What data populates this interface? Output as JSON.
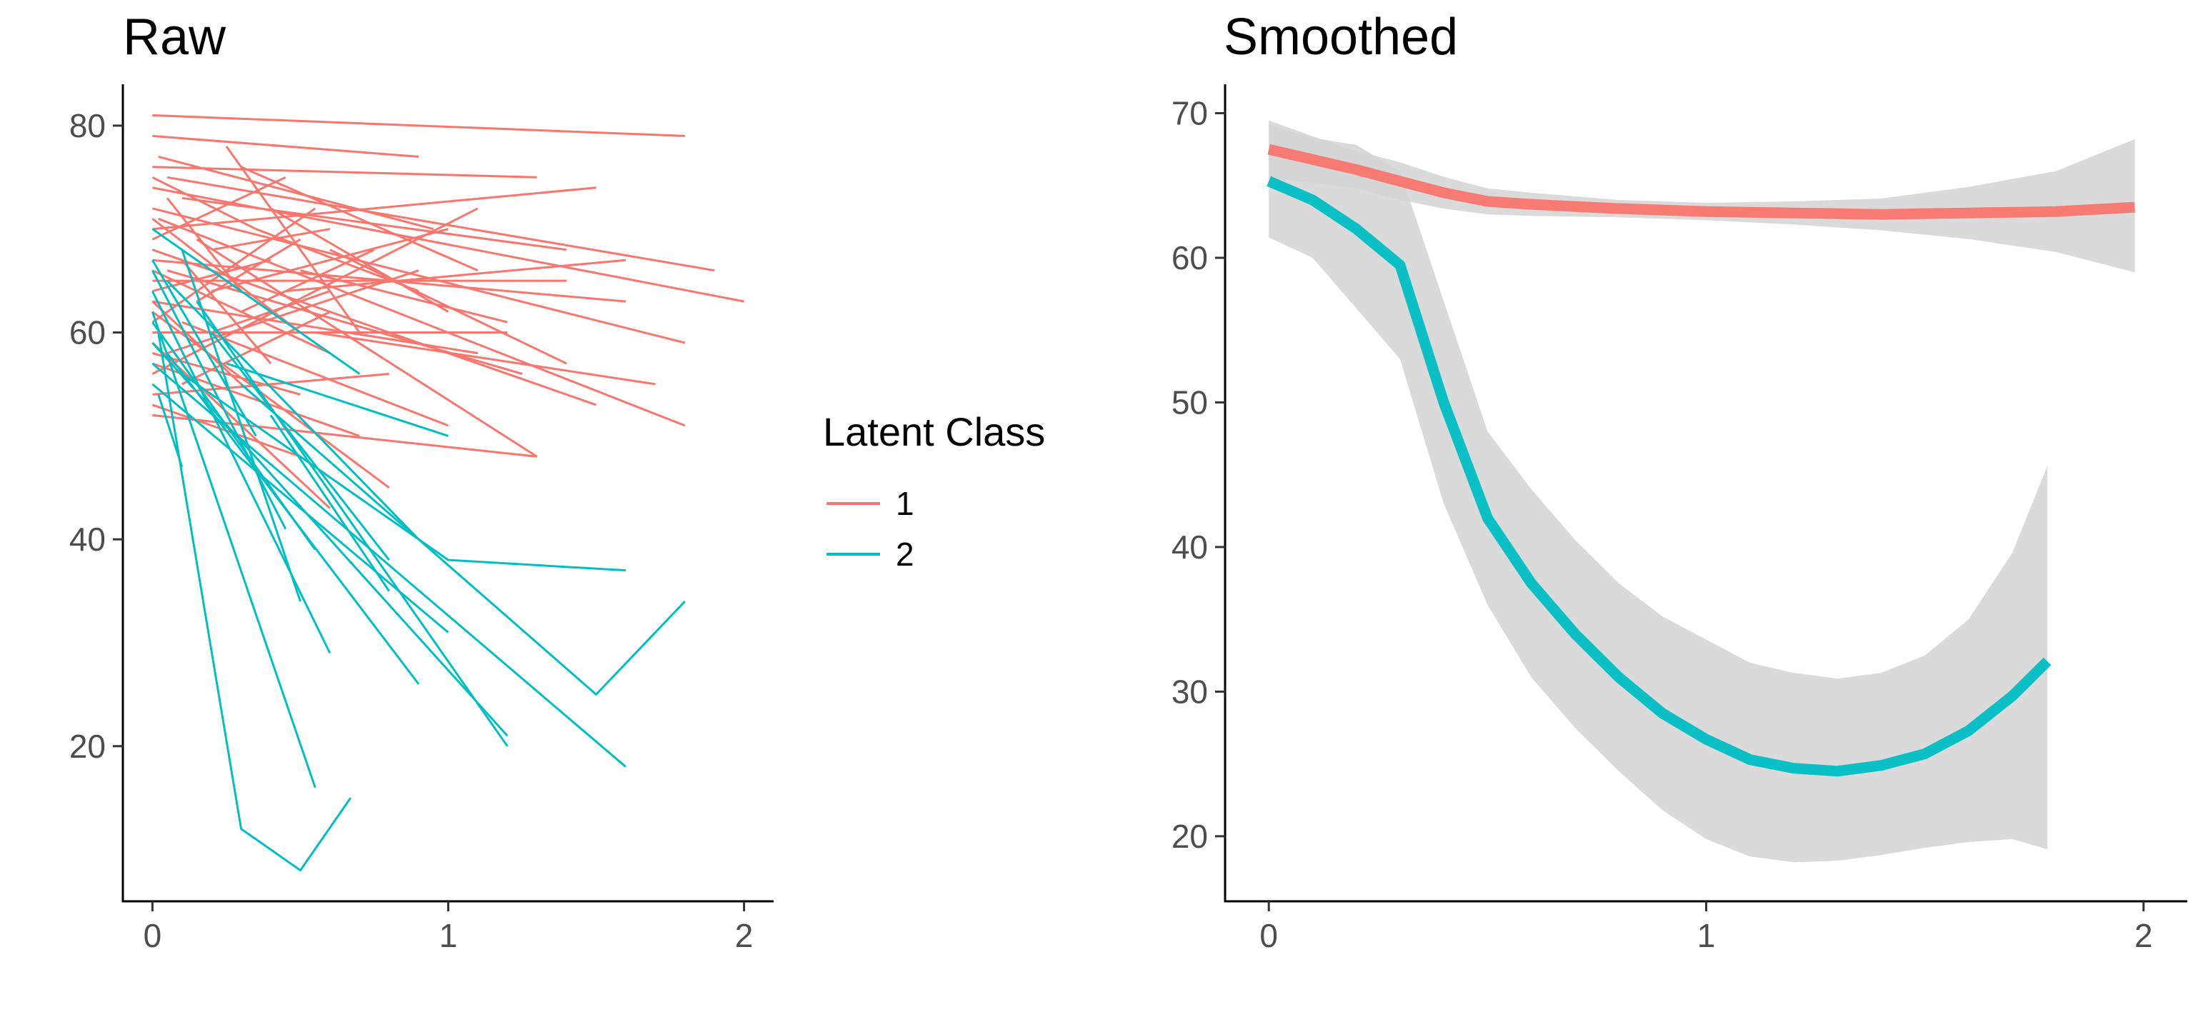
{
  "legend": {
    "title": "Latent Class",
    "placement": "between-panels",
    "items": [
      {
        "label": "1",
        "color": "#F8766D"
      },
      {
        "label": "2",
        "color": "#00BFC4"
      }
    ]
  },
  "chart_data": [
    {
      "id": "raw",
      "type": "line",
      "title": "Raw",
      "xlabel": "",
      "ylabel": "",
      "xlim": [
        -0.1,
        2.1
      ],
      "ylim": [
        5,
        84
      ],
      "x_ticks": [
        0,
        1,
        2
      ],
      "y_ticks": [
        20,
        40,
        60,
        80
      ],
      "grid": false,
      "series": [
        {
          "class": "1",
          "color": "#F8766D",
          "lines": [
            [
              [
                0,
                81
              ],
              [
                1.8,
                79
              ]
            ],
            [
              [
                0,
                79
              ],
              [
                0.9,
                77
              ]
            ],
            [
              [
                0.02,
                77
              ],
              [
                0.95,
                70
              ]
            ],
            [
              [
                0,
                76
              ],
              [
                1.3,
                75
              ]
            ],
            [
              [
                0.05,
                75
              ],
              [
                1.9,
                66
              ]
            ],
            [
              [
                0,
                74
              ],
              [
                2.0,
                63
              ]
            ],
            [
              [
                0.1,
                73
              ],
              [
                1.4,
                68
              ]
            ],
            [
              [
                0,
                72
              ],
              [
                1.8,
                59
              ]
            ],
            [
              [
                0.02,
                71
              ],
              [
                1.8,
                51
              ]
            ],
            [
              [
                0,
                70
              ],
              [
                1.5,
                74
              ]
            ],
            [
              [
                0.15,
                69
              ],
              [
                1.3,
                48
              ]
            ],
            [
              [
                0,
                68
              ],
              [
                1.5,
                53
              ]
            ],
            [
              [
                0,
                67
              ],
              [
                1.6,
                63
              ]
            ],
            [
              [
                0.05,
                66
              ],
              [
                1.25,
                56
              ]
            ],
            [
              [
                0,
                65
              ],
              [
                1.4,
                65
              ]
            ],
            [
              [
                0.2,
                64
              ],
              [
                1.0,
                70
              ]
            ],
            [
              [
                0,
                63
              ],
              [
                1.1,
                58
              ]
            ],
            [
              [
                0,
                62
              ],
              [
                0.8,
                45
              ]
            ],
            [
              [
                0.1,
                61
              ],
              [
                1.0,
                51
              ]
            ],
            [
              [
                0,
                60
              ],
              [
                1.2,
                60
              ]
            ],
            [
              [
                0,
                59
              ],
              [
                0.6,
                43
              ]
            ],
            [
              [
                0.05,
                58
              ],
              [
                0.9,
                66
              ]
            ],
            [
              [
                0,
                57
              ],
              [
                0.7,
                50
              ]
            ],
            [
              [
                0,
                56
              ],
              [
                1.1,
                72
              ]
            ],
            [
              [
                0.1,
                55
              ],
              [
                0.6,
                62
              ]
            ],
            [
              [
                0,
                54
              ],
              [
                0.8,
                56
              ]
            ],
            [
              [
                0,
                53
              ],
              [
                0.5,
                48
              ]
            ],
            [
              [
                0,
                52
              ],
              [
                1.3,
                48
              ]
            ],
            [
              [
                0.25,
                78
              ],
              [
                0.7,
                60
              ]
            ],
            [
              [
                0.3,
                76
              ],
              [
                1.1,
                66
              ]
            ],
            [
              [
                0.2,
                68
              ],
              [
                0.6,
                70
              ]
            ],
            [
              [
                0.4,
                72
              ],
              [
                1.0,
                62
              ]
            ],
            [
              [
                0.35,
                70
              ],
              [
                0.9,
                64
              ]
            ],
            [
              [
                0.5,
                66
              ],
              [
                1.2,
                61
              ]
            ],
            [
              [
                0.3,
                62
              ],
              [
                0.75,
                68
              ]
            ],
            [
              [
                0,
                71
              ],
              [
                0.5,
                60
              ]
            ],
            [
              [
                0,
                69
              ],
              [
                0.45,
                75
              ]
            ],
            [
              [
                0,
                66
              ],
              [
                0.6,
                58
              ]
            ],
            [
              [
                0,
                64
              ],
              [
                0.4,
                67
              ]
            ],
            [
              [
                0,
                61
              ],
              [
                0.55,
                72
              ]
            ],
            [
              [
                0,
                58
              ],
              [
                0.5,
                54
              ]
            ],
            [
              [
                0.05,
                73
              ],
              [
                0.3,
                64
              ]
            ],
            [
              [
                0.1,
                67
              ],
              [
                0.4,
                57
              ]
            ],
            [
              [
                0.15,
                63
              ],
              [
                0.5,
                69
              ]
            ],
            [
              [
                0.2,
                60
              ],
              [
                0.6,
                64
              ]
            ],
            [
              [
                0,
                75
              ],
              [
                0.35,
                70
              ]
            ],
            [
              [
                0,
                63
              ],
              [
                0.3,
                55
              ]
            ],
            [
              [
                0.45,
                64
              ],
              [
                1.6,
                67
              ]
            ],
            [
              [
                0.55,
                60
              ],
              [
                1.7,
                55
              ]
            ],
            [
              [
                0.6,
                68
              ],
              [
                1.4,
                57
              ]
            ]
          ]
        },
        {
          "class": "2",
          "color": "#00BFC4",
          "lines": [
            [
              [
                0,
                70
              ],
              [
                0.7,
                56
              ]
            ],
            [
              [
                0,
                66
              ],
              [
                0.45,
                41
              ]
            ],
            [
              [
                0,
                64
              ],
              [
                0.6,
                29
              ]
            ],
            [
              [
                0,
                62
              ],
              [
                0.55,
                16
              ]
            ],
            [
              [
                0.02,
                60
              ],
              [
                0.3,
                12
              ],
              [
                0.5,
                8
              ],
              [
                0.67,
                15
              ]
            ],
            [
              [
                0,
                59
              ],
              [
                1.2,
                21
              ]
            ],
            [
              [
                0.05,
                58
              ],
              [
                0.9,
                26
              ]
            ],
            [
              [
                0,
                57
              ],
              [
                1.6,
                18
              ]
            ],
            [
              [
                0.1,
                56
              ],
              [
                1.0,
                38
              ],
              [
                1.6,
                37
              ]
            ],
            [
              [
                0,
                55
              ],
              [
                1.0,
                31
              ]
            ],
            [
              [
                0.02,
                54
              ],
              [
                0.1,
                47
              ]
            ],
            [
              [
                0.1,
                68
              ],
              [
                0.5,
                34
              ]
            ],
            [
              [
                0.2,
                60
              ],
              [
                0.8,
                38
              ]
            ],
            [
              [
                0.3,
                55
              ],
              [
                1.5,
                25
              ],
              [
                1.8,
                34
              ]
            ],
            [
              [
                0.15,
                63
              ],
              [
                1.2,
                20
              ]
            ],
            [
              [
                0,
                61
              ],
              [
                0.55,
                39
              ]
            ],
            [
              [
                0.05,
                65
              ],
              [
                0.9,
                40
              ]
            ],
            [
              [
                0.25,
                57
              ],
              [
                1.0,
                50
              ]
            ],
            [
              [
                0.4,
                52
              ],
              [
                0.8,
                35
              ]
            ],
            [
              [
                0,
                67
              ],
              [
                0.35,
                50
              ]
            ]
          ]
        }
      ]
    },
    {
      "id": "smoothed",
      "type": "line",
      "title": "Smoothed",
      "xlabel": "",
      "ylabel": "",
      "xlim": [
        -0.1,
        2.1
      ],
      "ylim": [
        15.5,
        72
      ],
      "x_ticks": [
        0,
        1,
        2
      ],
      "y_ticks": [
        20,
        30,
        40,
        50,
        60,
        70
      ],
      "grid": false,
      "band_color": "#d3d3d3",
      "series": [
        {
          "class": "1",
          "color": "#F8766D",
          "x": [
            0,
            0.1,
            0.2,
            0.3,
            0.4,
            0.5,
            0.6,
            0.8,
            1.0,
            1.2,
            1.4,
            1.6,
            1.8,
            1.98
          ],
          "y": [
            67.5,
            66.8,
            66.1,
            65.3,
            64.5,
            63.9,
            63.7,
            63.4,
            63.2,
            63.1,
            63.0,
            63.1,
            63.2,
            63.5
          ],
          "lower": [
            65.5,
            65.2,
            64.8,
            64.0,
            63.4,
            63.0,
            62.9,
            62.8,
            62.6,
            62.3,
            61.9,
            61.3,
            60.4,
            59.0
          ],
          "upper": [
            69.5,
            68.4,
            67.4,
            66.6,
            65.6,
            64.8,
            64.5,
            64.0,
            63.8,
            63.9,
            64.1,
            64.9,
            66.0,
            68.2
          ]
        },
        {
          "class": "2",
          "color": "#00BFC4",
          "x": [
            0,
            0.1,
            0.2,
            0.3,
            0.4,
            0.5,
            0.6,
            0.7,
            0.8,
            0.9,
            1.0,
            1.1,
            1.2,
            1.3,
            1.4,
            1.5,
            1.6,
            1.7,
            1.78
          ],
          "y": [
            65.3,
            64.0,
            62.0,
            59.5,
            50.0,
            42.0,
            37.5,
            34.0,
            31.0,
            28.5,
            26.7,
            25.3,
            24.7,
            24.5,
            24.9,
            25.7,
            27.3,
            29.7,
            32.1
          ],
          "lower": [
            61.4,
            60.0,
            56.5,
            53.0,
            43.0,
            36.0,
            31.0,
            27.5,
            24.5,
            21.8,
            19.8,
            18.6,
            18.2,
            18.3,
            18.7,
            19.2,
            19.6,
            19.8,
            19.1
          ],
          "upper": [
            69.2,
            68.3,
            67.8,
            66.0,
            57.0,
            48.0,
            44.0,
            40.5,
            37.5,
            35.2,
            33.6,
            32.0,
            31.3,
            30.9,
            31.3,
            32.5,
            35.0,
            39.6,
            45.6
          ]
        }
      ]
    }
  ]
}
